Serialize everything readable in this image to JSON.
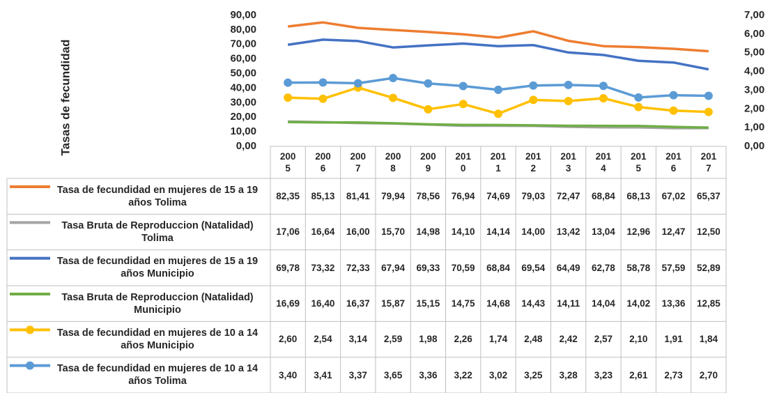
{
  "chart_data": {
    "type": "line",
    "ylabel": "Tasas de fecundidad",
    "categories": [
      "2005",
      "2006",
      "2007",
      "2008",
      "2009",
      "2010",
      "2011",
      "2012",
      "2013",
      "2014",
      "2015",
      "2016",
      "2017"
    ],
    "ylim": [
      0,
      90
    ],
    "yticks": [
      {
        "value": 0,
        "label": "0,00"
      },
      {
        "value": 10,
        "label": "10,00"
      },
      {
        "value": 20,
        "label": "20,00"
      },
      {
        "value": 30,
        "label": "30,00"
      },
      {
        "value": 40,
        "label": "40,00"
      },
      {
        "value": 50,
        "label": "50,00"
      },
      {
        "value": 60,
        "label": "60,00"
      },
      {
        "value": 70,
        "label": "70,00"
      },
      {
        "value": 80,
        "label": "80,00"
      },
      {
        "value": 90,
        "label": "90,00"
      }
    ],
    "y2lim": [
      0,
      7
    ],
    "y2ticks": [
      {
        "value": 0,
        "label": "0,00"
      },
      {
        "value": 1,
        "label": "1,00"
      },
      {
        "value": 2,
        "label": "2,00"
      },
      {
        "value": 3,
        "label": "3,00"
      },
      {
        "value": 4,
        "label": "4,00"
      },
      {
        "value": 5,
        "label": "5,00"
      },
      {
        "value": 6,
        "label": "6,00"
      },
      {
        "value": 7,
        "label": "7,00"
      }
    ],
    "series": [
      {
        "name": "Tasa de fecundidad en mujeres de 15 a 19 años Tolima",
        "color": "#ED7D31",
        "marker": false,
        "values": [
          82.35,
          85.13,
          81.41,
          79.94,
          78.56,
          76.94,
          74.69,
          79.03,
          72.47,
          68.84,
          68.13,
          67.02,
          65.37
        ],
        "value_labels": [
          "82,35",
          "85,13",
          "81,41",
          "79,94",
          "78,56",
          "76,94",
          "74,69",
          "79,03",
          "72,47",
          "68,84",
          "68,13",
          "67,02",
          "65,37"
        ]
      },
      {
        "name": "Tasa Bruta de Reproduccion (Natalidad) Tolima",
        "color": "#A5A5A5",
        "marker": false,
        "values": [
          17.06,
          16.64,
          16.0,
          15.7,
          14.98,
          14.1,
          14.14,
          14.0,
          13.42,
          13.04,
          12.96,
          12.47,
          12.5
        ],
        "value_labels": [
          "17,06",
          "16,64",
          "16,00",
          "15,70",
          "14,98",
          "14,10",
          "14,14",
          "14,00",
          "13,42",
          "13,04",
          "12,96",
          "12,47",
          "12,50"
        ]
      },
      {
        "name": "Tasa de fecundidad en mujeres de 15 a 19 años Municipio",
        "color": "#4472C4",
        "marker": false,
        "values": [
          69.78,
          73.32,
          72.33,
          67.94,
          69.33,
          70.59,
          68.84,
          69.54,
          64.49,
          62.78,
          58.78,
          57.59,
          52.89
        ],
        "value_labels": [
          "69,78",
          "73,32",
          "72,33",
          "67,94",
          "69,33",
          "70,59",
          "68,84",
          "69,54",
          "64,49",
          "62,78",
          "58,78",
          "57,59",
          "52,89"
        ]
      },
      {
        "name": "Tasa Bruta de Reproduccion (Natalidad) Municipio",
        "color": "#70AD47",
        "marker": false,
        "values": [
          16.69,
          16.4,
          16.37,
          15.87,
          15.15,
          14.75,
          14.68,
          14.43,
          14.11,
          14.04,
          14.02,
          13.36,
          12.85
        ],
        "value_labels": [
          "16,69",
          "16,40",
          "16,37",
          "15,87",
          "15,15",
          "14,75",
          "14,68",
          "14,43",
          "14,11",
          "14,04",
          "14,02",
          "13,36",
          "12,85"
        ]
      },
      {
        "name": "Tasa de fecundidad en mujeres de 10 a 14 años Municipio",
        "color": "#FFC000",
        "marker": true,
        "axis": "y2",
        "values": [
          2.6,
          2.54,
          3.14,
          2.59,
          1.98,
          2.26,
          1.74,
          2.48,
          2.42,
          2.57,
          2.1,
          1.91,
          1.84
        ],
        "value_labels": [
          "2,60",
          "2,54",
          "3,14",
          "2,59",
          "1,98",
          "2,26",
          "1,74",
          "2,48",
          "2,42",
          "2,57",
          "2,10",
          "1,91",
          "1,84"
        ]
      },
      {
        "name": "Tasa de fecundidad en mujeres de 10 a 14 años Tolima",
        "color": "#5B9BD5",
        "marker": true,
        "axis": "y2",
        "values": [
          3.4,
          3.41,
          3.37,
          3.65,
          3.36,
          3.22,
          3.02,
          3.25,
          3.28,
          3.23,
          2.61,
          2.73,
          2.7
        ],
        "value_labels": [
          "3,40",
          "3,41",
          "3,37",
          "3,65",
          "3,36",
          "3,22",
          "3,02",
          "3,25",
          "3,28",
          "3,23",
          "2,61",
          "2,73",
          "2,70"
        ]
      }
    ]
  }
}
